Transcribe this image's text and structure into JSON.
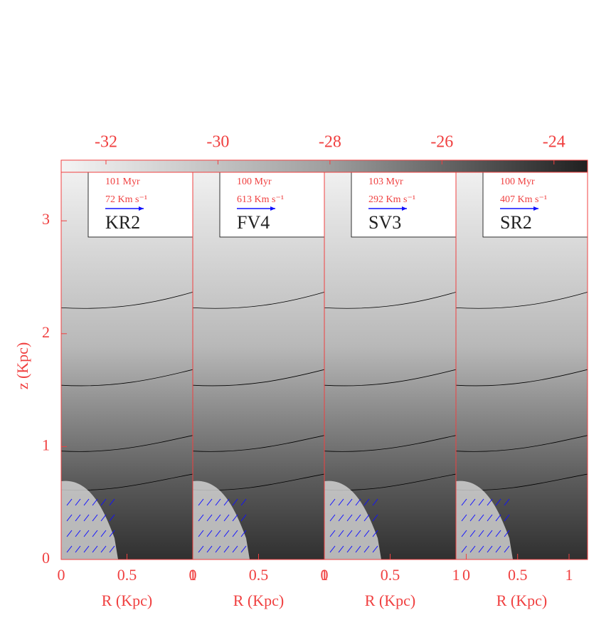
{
  "figure": {
    "colorbar": {
      "lim": [
        -32.8,
        -23.4
      ],
      "ticks": [
        -32,
        -30,
        -28,
        -26,
        -24
      ]
    },
    "ylabel": "z (Kpc)",
    "ylim": [
      0,
      3.43
    ],
    "yticks": [
      0,
      1,
      2,
      3
    ],
    "panels": [
      {
        "label": "KR2",
        "time": "101 Myr",
        "velocity": "72 Km s⁻¹",
        "xlabel": "R (Kpc)",
        "xlim": [
          0,
          1
        ],
        "xticks": [
          0,
          0.5,
          1
        ]
      },
      {
        "label": "FV4",
        "time": "100 Myr",
        "velocity": "613 Km s⁻¹",
        "xlabel": "R (Kpc)",
        "xlim": [
          0,
          1
        ],
        "xticks": [
          0,
          0.5,
          1
        ]
      },
      {
        "label": "SV3",
        "time": "103 Myr",
        "velocity": "292 Km s⁻¹",
        "xlabel": "R (Kpc)",
        "xlim": [
          0,
          1
        ],
        "xticks": [
          0,
          0.5,
          1
        ]
      },
      {
        "label": "SR2",
        "time": "100 Myr",
        "velocity": "407 Km s⁻¹",
        "xlabel": "R (Kpc)",
        "xlim": [
          -0.1,
          1.18
        ],
        "xticks": [
          0,
          0.5,
          1
        ]
      }
    ]
  }
}
